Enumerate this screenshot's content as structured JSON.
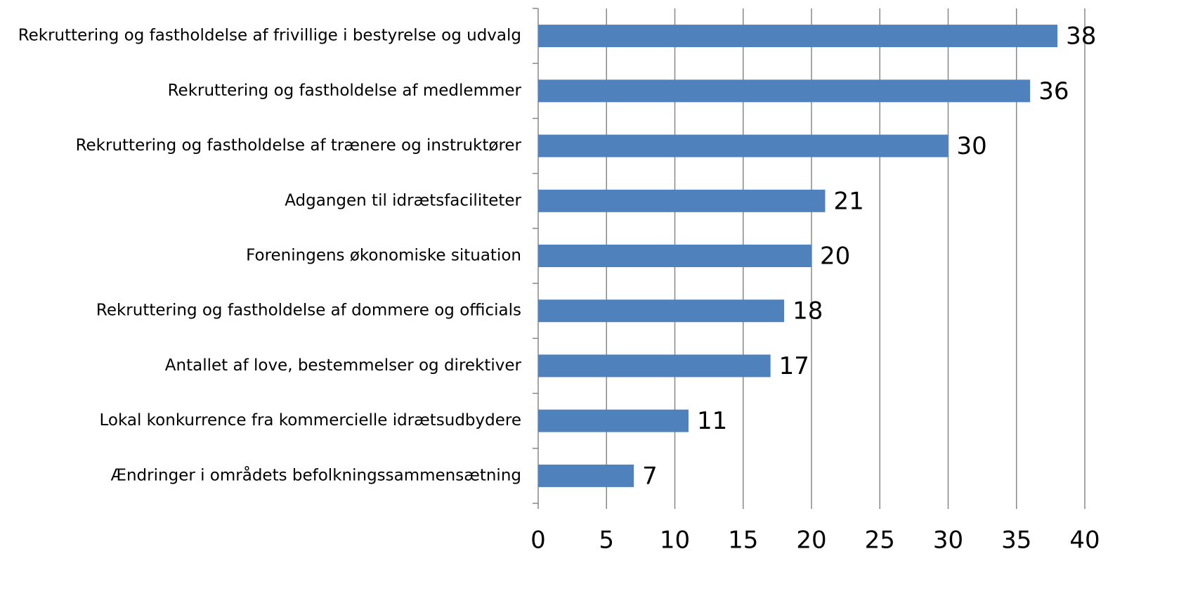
{
  "chart_data": {
    "type": "bar",
    "orientation": "horizontal",
    "categories": [
      "Rekruttering og fastholdelse af frivillige i bestyrelse og udvalg",
      "Rekruttering og fastholdelse af medlemmer",
      "Rekruttering og fastholdelse af trænere og instruktører",
      "Adgangen til idrætsfaciliteter",
      "Foreningens økonomiske situation",
      "Rekruttering og fastholdelse af dommere og officials",
      "Antallet af love, bestemmelser og direktiver",
      "Lokal konkurrence fra kommercielle idrætsudbydere",
      "Ændringer i områdets befolkningssammensætning"
    ],
    "values": [
      38,
      36,
      30,
      21,
      20,
      18,
      17,
      11,
      7
    ],
    "color": "#4f81bd",
    "xlim": [
      0,
      40
    ],
    "xticks": [
      0,
      5,
      10,
      15,
      20,
      25,
      30,
      35,
      40
    ],
    "grid": true
  }
}
